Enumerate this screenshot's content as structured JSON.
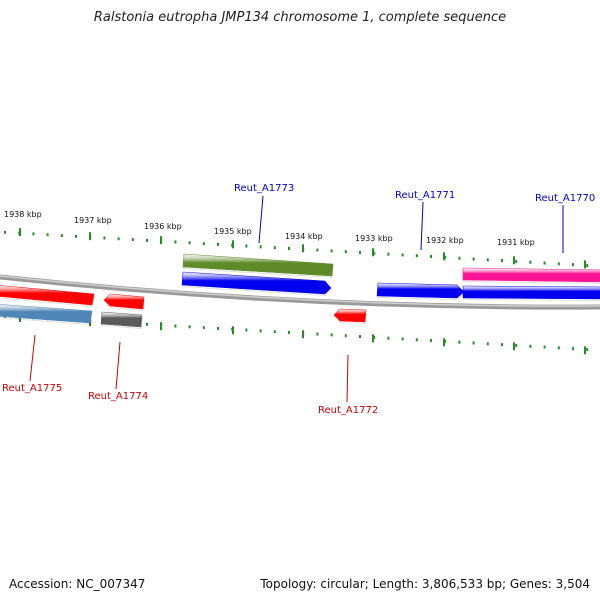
{
  "title": "Ralstonia eutropha JMP134 chromosome 1, complete sequence",
  "footer": {
    "accession": "Accession: NC_007347",
    "summary": "Topology: circular; Length: 3,806,533 bp; Genes: 3,504"
  },
  "colors": {
    "backbone": "#888888",
    "tick": "#2a8a2a",
    "forward_label": "#0000cc",
    "reverse_label": "#cc0000"
  },
  "scale_labels": [
    "1938 kbp",
    "1937 kbp",
    "1936 kbp",
    "1935 kbp",
    "1934 kbp",
    "1933 kbp",
    "1932 kbp",
    "1931 kbp"
  ],
  "genes": [
    {
      "id": "gene-a1775-red",
      "color": "#ff0000",
      "strand": "reverse"
    },
    {
      "id": "gene-a1775-blue",
      "color": "#4f86b8",
      "strand": "reverse"
    },
    {
      "id": "gene-a1774-red",
      "color": "#ff0000",
      "strand": "reverse"
    },
    {
      "id": "gene-a1774-gray",
      "color": "#5a5a5a",
      "strand": "reverse"
    },
    {
      "id": "gene-a1773-green",
      "color": "#5f8a28",
      "strand": "forward"
    },
    {
      "id": "gene-a1773-blue",
      "color": "#0000ee",
      "strand": "forward"
    },
    {
      "id": "gene-a1772-red",
      "color": "#ff0000",
      "strand": "reverse"
    },
    {
      "id": "gene-a1771-blue",
      "color": "#0000ee",
      "strand": "forward"
    },
    {
      "id": "gene-a1770-pink",
      "color": "#ff1493",
      "strand": "forward"
    },
    {
      "id": "gene-a1770-blue",
      "color": "#0000ee",
      "strand": "forward"
    }
  ],
  "gene_labels": [
    {
      "text": "Reut_A1773",
      "strand": "forward"
    },
    {
      "text": "Reut_A1771",
      "strand": "forward"
    },
    {
      "text": "Reut_A1770",
      "strand": "forward"
    },
    {
      "text": "Reut_A1775",
      "strand": "reverse"
    },
    {
      "text": "Reut_A1774",
      "strand": "reverse"
    },
    {
      "text": "Reut_A1772",
      "strand": "reverse"
    }
  ]
}
